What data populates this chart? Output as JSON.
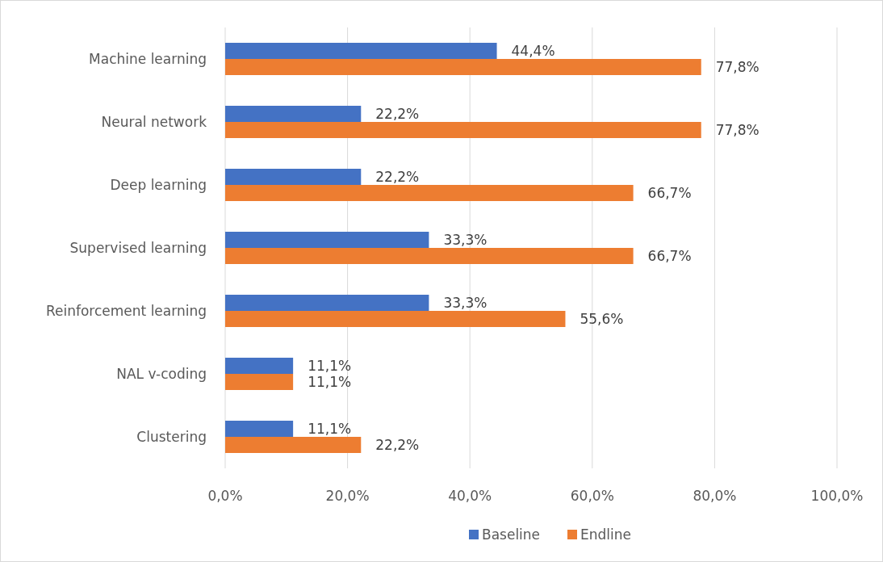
{
  "chart_data": {
    "type": "bar",
    "orientation": "horizontal",
    "categories": [
      "Machine learning",
      "Neural network",
      "Deep learning",
      "Supervised learning",
      "Reinforcement learning",
      "NAL v-coding",
      "Clustering"
    ],
    "series": [
      {
        "name": "Baseline",
        "color": "#4472c4",
        "values": [
          44.4,
          22.2,
          22.2,
          33.3,
          33.3,
          11.1,
          11.1
        ],
        "value_labels": [
          "44,4%",
          "22,2%",
          "22,2%",
          "33,3%",
          "33,3%",
          "11,1%",
          "11,1%"
        ]
      },
      {
        "name": "Endline",
        "color": "#ed7d31",
        "values": [
          77.8,
          77.8,
          66.7,
          66.7,
          55.6,
          11.1,
          22.2
        ],
        "value_labels": [
          "77,8%",
          "77,8%",
          "66,7%",
          "66,7%",
          "55,6%",
          "11,1%",
          "22,2%"
        ]
      }
    ],
    "xlim": [
      0,
      100
    ],
    "xticks": [
      {
        "value": 0,
        "label": "0,0%"
      },
      {
        "value": 20,
        "label": "20,0%"
      },
      {
        "value": 40,
        "label": "40,0%"
      },
      {
        "value": 60,
        "label": "60,0%"
      },
      {
        "value": 80,
        "label": "80,0%"
      },
      {
        "value": 100,
        "label": "100,0%"
      }
    ],
    "grid": "x",
    "legend": "bottom"
  }
}
